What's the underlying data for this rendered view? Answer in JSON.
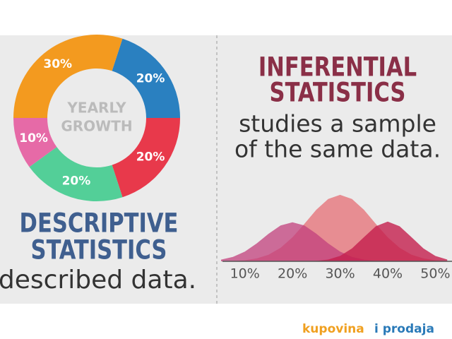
{
  "chart_data": [
    {
      "type": "donut",
      "title": [
        "DESCRIPTIVE",
        "STATISTICS"
      ],
      "subtitle": "described data.",
      "center_label": [
        "YEARLY",
        "GROWTH"
      ],
      "categories": [
        null,
        null,
        null,
        null,
        null
      ],
      "values": [
        20,
        20,
        20,
        10,
        30
      ],
      "value_labels": [
        "20%",
        "20%",
        "20%",
        "10%",
        "30%"
      ],
      "colors": [
        "#2a80c0",
        "#e8394b",
        "#53cf98",
        "#e66aa7",
        "#f39a1f"
      ]
    },
    {
      "type": "area",
      "title": [
        "INFERENTIAL",
        "STATISTICS"
      ],
      "subtitle": [
        "studies a sample",
        "of the same data."
      ],
      "x": [
        5,
        7.5,
        10,
        12.5,
        15,
        17.5,
        20,
        22.5,
        25,
        27.5,
        30,
        32.5,
        35,
        37.5,
        40,
        42.5,
        45,
        47.5,
        50,
        52.5
      ],
      "series": [
        {
          "color": "#e67c82",
          "values": [
            0.2,
            0.6,
            1.6,
            4.3,
            9.7,
            19.7,
            35,
            54.6,
            75.2,
            91,
            97,
            91,
            75.2,
            54.6,
            35,
            19.7,
            9.7,
            4.3,
            1.6,
            0.6
          ]
        },
        {
          "color": "#c2407c",
          "values": [
            2.5,
            6.5,
            14.2,
            26.1,
            40.3,
            52.3,
            57,
            52.3,
            40.3,
            26.1,
            14.2,
            6.5,
            2.5,
            0.8,
            0.2,
            0,
            0,
            0,
            0,
            0
          ]
        },
        {
          "color": "#c41f4e",
          "values": [
            0,
            0,
            0,
            0,
            0,
            0,
            0,
            0.1,
            0.6,
            2.6,
            7.8,
            18.8,
            35.2,
            51.2,
            58,
            51.2,
            35.2,
            18.8,
            7.8,
            2.6
          ]
        }
      ],
      "xlim": [
        5,
        53.5
      ],
      "ylim": [
        0,
        100
      ],
      "xticks": [
        {
          "value": 10,
          "label": "10%"
        },
        {
          "value": 20,
          "label": "20%"
        },
        {
          "value": 30,
          "label": "30%"
        },
        {
          "value": 40,
          "label": "40%"
        },
        {
          "value": 50,
          "label": "50%"
        }
      ]
    }
  ],
  "watermark": [
    "kupovina",
    "i prodaja"
  ]
}
